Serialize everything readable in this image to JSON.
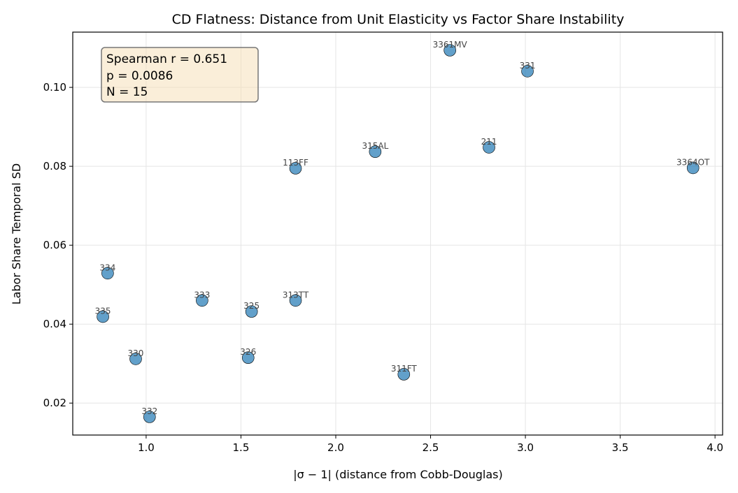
{
  "chart_data": {
    "type": "scatter",
    "title": "CD Flatness: Distance from Unit Elasticity vs Factor Share Instability",
    "xlabel": "|σ − 1| (distance from Cobb-Douglas)",
    "ylabel": "Labor Share Temporal SD",
    "xlim": [
      0.613,
      4.04
    ],
    "ylim": [
      0.0119,
      0.114
    ],
    "xticks": [
      1.0,
      1.5,
      2.0,
      2.5,
      3.0,
      3.5,
      4.0
    ],
    "xtick_labels": [
      "1.0",
      "1.5",
      "2.0",
      "2.5",
      "3.0",
      "3.5",
      "4.0"
    ],
    "yticks": [
      0.02,
      0.04,
      0.06,
      0.08,
      0.1
    ],
    "ytick_labels": [
      "0.02",
      "0.04",
      "0.06",
      "0.08",
      "0.10"
    ],
    "grid": true,
    "marker_color": "#1f77b4",
    "annotation": {
      "lines": [
        "Spearman r = 0.651",
        "p = 0.0086",
        "N = 15"
      ],
      "placement": "top-left",
      "box_color": "#f5deb3"
    },
    "points": [
      {
        "label": "3361MV",
        "x": 2.602,
        "y": 0.1094
      },
      {
        "label": "331",
        "x": 3.011,
        "y": 0.1041
      },
      {
        "label": "315AL",
        "x": 2.208,
        "y": 0.0837
      },
      {
        "label": "211",
        "x": 2.808,
        "y": 0.0848
      },
      {
        "label": "113FF",
        "x": 1.788,
        "y": 0.0795
      },
      {
        "label": "3364OT",
        "x": 3.884,
        "y": 0.0796
      },
      {
        "label": "334",
        "x": 0.797,
        "y": 0.0529
      },
      {
        "label": "333",
        "x": 1.295,
        "y": 0.046
      },
      {
        "label": "313TT",
        "x": 1.788,
        "y": 0.046
      },
      {
        "label": "325",
        "x": 1.556,
        "y": 0.0432
      },
      {
        "label": "335",
        "x": 0.772,
        "y": 0.0419
      },
      {
        "label": "330",
        "x": 0.945,
        "y": 0.0312
      },
      {
        "label": "326",
        "x": 1.538,
        "y": 0.0315
      },
      {
        "label": "311FT",
        "x": 2.359,
        "y": 0.0273
      },
      {
        "label": "332",
        "x": 1.018,
        "y": 0.0165
      }
    ]
  }
}
